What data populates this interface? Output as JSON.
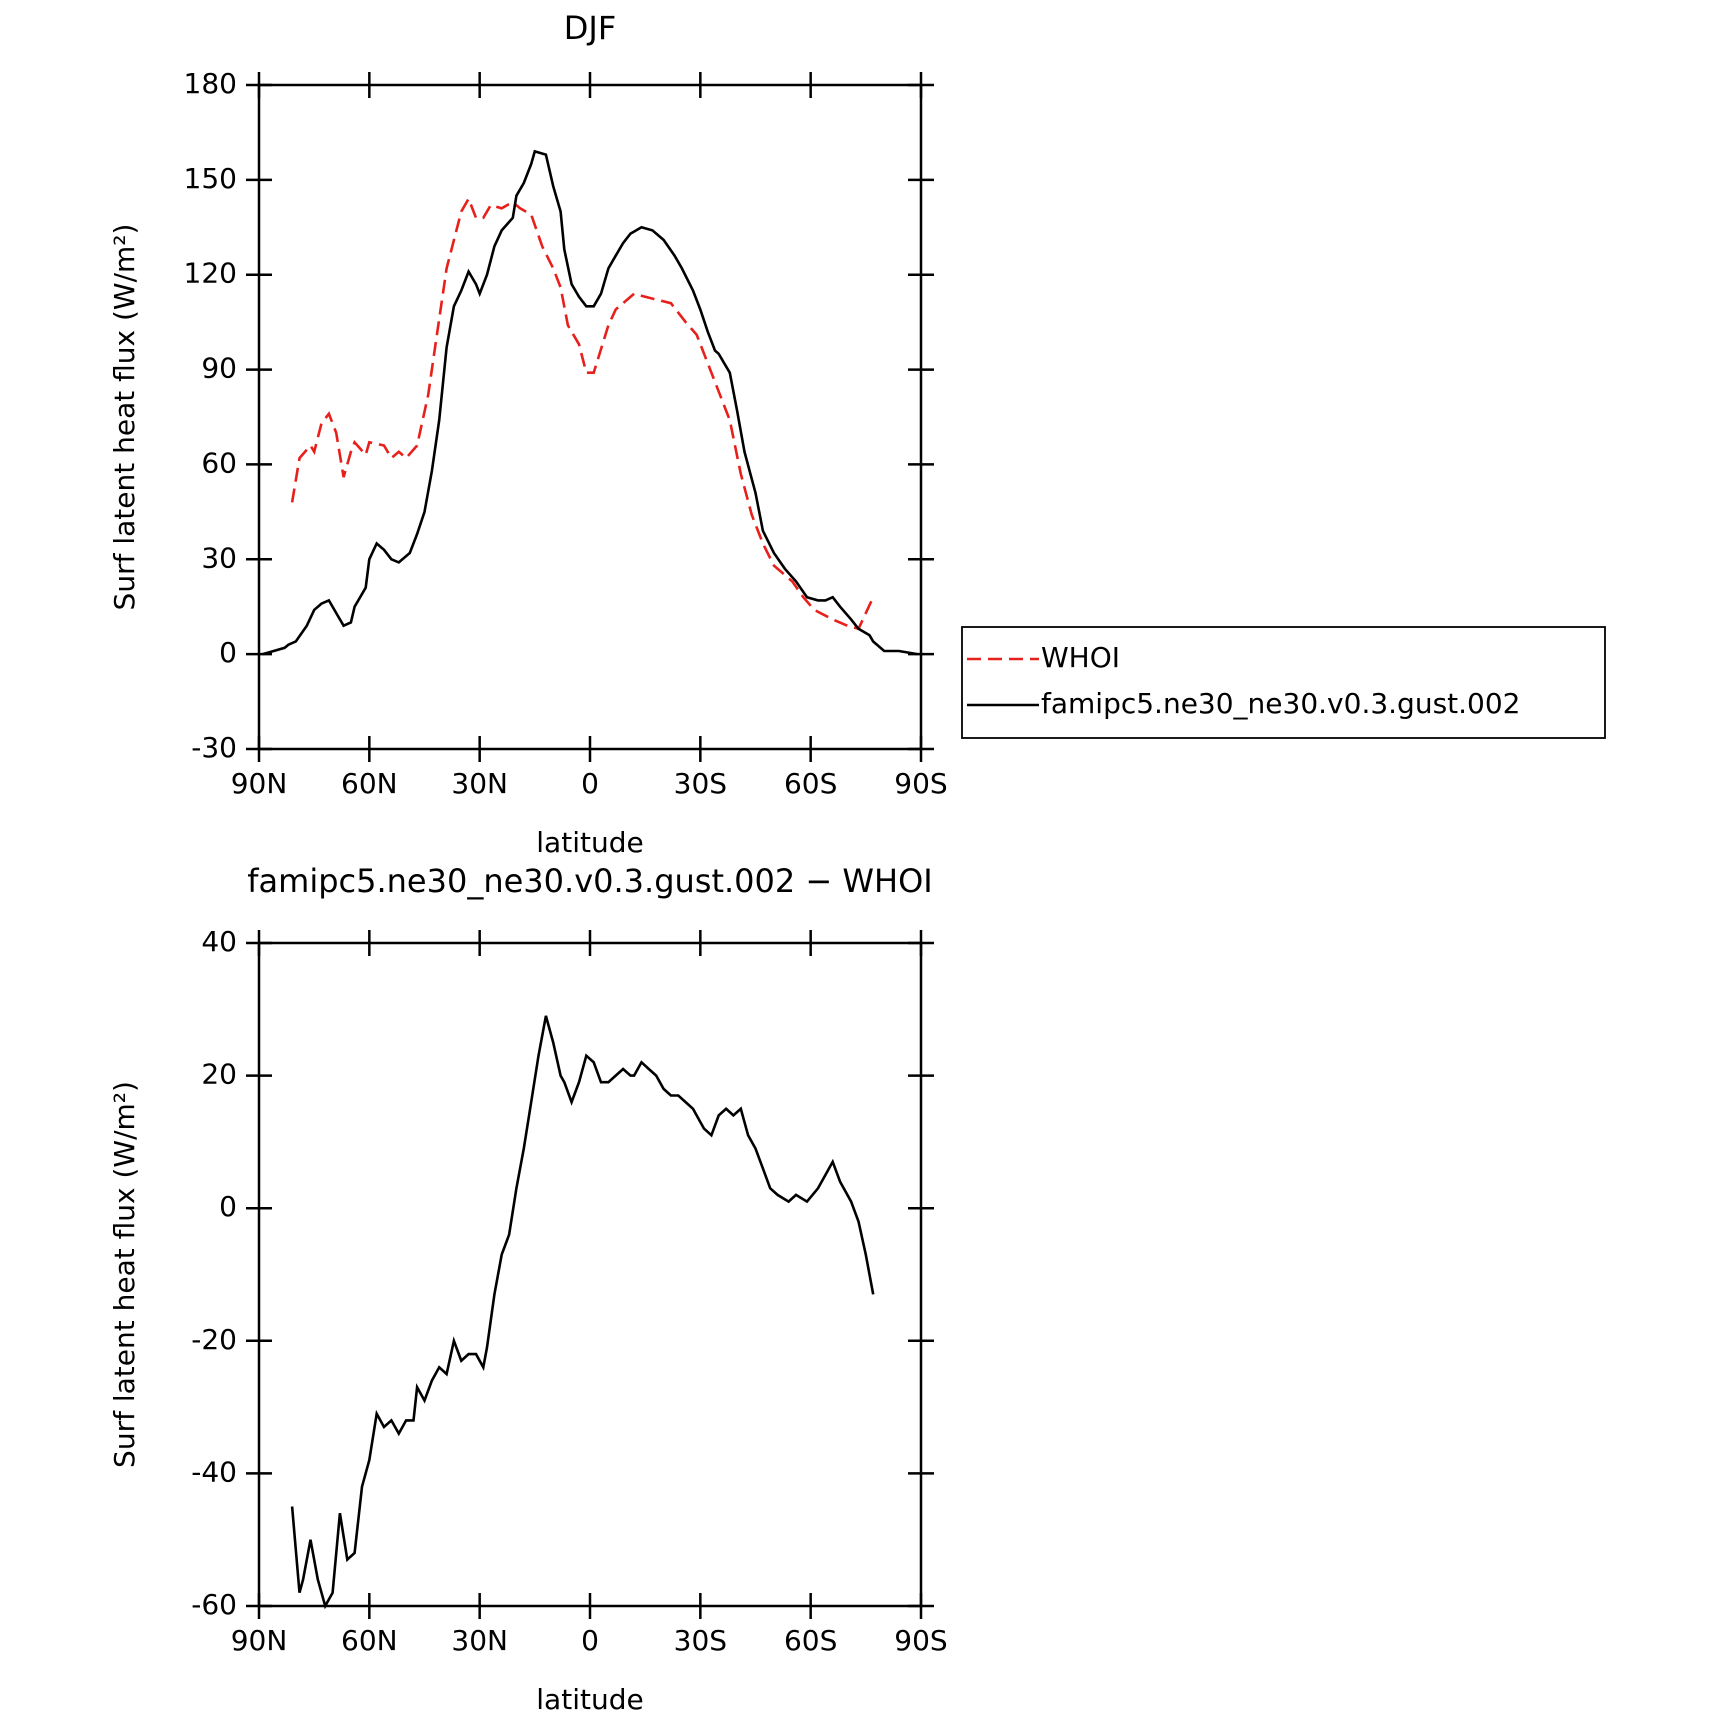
{
  "chart_data": [
    {
      "type": "line",
      "title": "DJF",
      "x_label": "latitude",
      "y_label": "Surf latent heat flux (W/m²)",
      "xlim": [
        90,
        -90
      ],
      "xticks": [
        {
          "value": 90,
          "label": "90N"
        },
        {
          "value": 60,
          "label": "60N"
        },
        {
          "value": 30,
          "label": "30N"
        },
        0,
        {
          "value": -30,
          "label": "30S"
        },
        {
          "value": -60,
          "label": "60S"
        },
        {
          "value": -90,
          "label": "90S"
        }
      ],
      "ylim": [
        -30,
        180
      ],
      "yticks": [
        -30,
        0,
        30,
        60,
        90,
        120,
        150,
        180
      ],
      "legend": "right",
      "series": [
        {
          "name": "WHOI",
          "color": "#e8201b",
          "line_style": "dashed",
          "x": [
            81,
            79,
            76,
            75,
            73,
            71,
            69,
            67,
            65,
            64,
            61,
            60,
            56,
            54,
            52,
            50,
            47,
            44,
            42,
            39,
            35,
            33,
            31,
            29,
            27,
            24,
            21,
            19,
            16,
            13,
            10,
            8,
            6,
            3,
            1,
            -1,
            -5,
            -7,
            -12,
            -15,
            -22,
            -26,
            -29,
            -33,
            -38,
            -41,
            -44,
            -47,
            -50,
            -55,
            -58,
            -61,
            -66,
            -70,
            -73,
            -77
          ],
          "values": [
            48,
            62,
            66,
            64,
            73,
            76,
            70,
            56,
            64,
            67,
            63,
            67,
            66,
            62,
            64,
            62,
            66,
            82,
            98,
            122,
            140,
            144,
            138,
            138,
            142,
            141,
            143,
            141,
            139,
            129,
            122,
            116,
            104,
            98,
            89,
            89,
            104,
            109,
            114,
            113,
            111,
            105,
            101,
            89,
            74,
            57,
            44,
            35,
            28,
            23,
            18,
            14,
            11,
            9,
            8,
            18
          ]
        },
        {
          "name": "famipc5.ne30_ne30.v0.3.gust.002",
          "color": "#000000",
          "line_style": "solid",
          "x": [
            89,
            86,
            83,
            82,
            80,
            77,
            75,
            73,
            71,
            69,
            67,
            65,
            64,
            61,
            60,
            58,
            56,
            54,
            52,
            49,
            47,
            45,
            43,
            41,
            39,
            37,
            35,
            33,
            31,
            30,
            28,
            26,
            24,
            21,
            20,
            18,
            16,
            15,
            12,
            10,
            8,
            7,
            5,
            3,
            1,
            -1,
            -3,
            -5,
            -7,
            -9,
            -11,
            -14,
            -17,
            -20,
            -23,
            -25,
            -28,
            -30,
            -32,
            -34,
            -35,
            -38,
            -40,
            -42,
            -45,
            -47,
            -50,
            -53,
            -56,
            -59,
            -62,
            -64,
            -66,
            -68,
            -71,
            -73,
            -76,
            -77,
            -80,
            -84,
            -89
          ],
          "values": [
            0,
            1,
            2,
            3,
            4,
            9,
            14,
            16,
            17,
            13,
            9,
            10,
            15,
            21,
            30,
            35,
            33,
            30,
            29,
            32,
            38,
            45,
            58,
            74,
            97,
            110,
            115,
            121,
            117,
            114,
            120,
            129,
            134,
            138,
            145,
            149,
            155,
            159,
            158,
            148,
            140,
            128,
            117,
            113,
            110,
            110,
            114,
            122,
            126,
            130,
            133,
            135,
            134,
            131,
            126,
            122,
            115,
            109,
            102,
            96,
            95,
            89,
            77,
            64,
            51,
            39,
            32,
            27,
            23,
            18,
            17,
            17,
            18,
            15,
            11,
            8,
            6,
            4,
            1,
            1,
            0
          ]
        }
      ]
    },
    {
      "type": "line",
      "title": "famipc5.ne30_ne30.v0.3.gust.002 − WHOI",
      "x_label": "latitude",
      "y_label": "Surf latent heat flux (W/m²)",
      "xlim": [
        90,
        -90
      ],
      "xticks": [
        {
          "value": 90,
          "label": "90N"
        },
        {
          "value": 60,
          "label": "60N"
        },
        {
          "value": 30,
          "label": "30N"
        },
        0,
        {
          "value": -30,
          "label": "30S"
        },
        {
          "value": -60,
          "label": "60S"
        },
        {
          "value": -90,
          "label": "90S"
        }
      ],
      "ylim": [
        -60,
        40
      ],
      "yticks": [
        -60,
        -40,
        -20,
        0,
        20,
        40
      ],
      "color": "#000000",
      "x": [
        81,
        79,
        78,
        76,
        74,
        72,
        70,
        68,
        66,
        64,
        62,
        60,
        58,
        56,
        54,
        52,
        50,
        48,
        47,
        45,
        43,
        41,
        39,
        37,
        35,
        33,
        31,
        29,
        28,
        26,
        24,
        22,
        20,
        18,
        16,
        14,
        12,
        10,
        8,
        7,
        5,
        3,
        1,
        -1,
        -3,
        -5,
        -7,
        -9,
        -11,
        -12,
        -14,
        -16,
        -18,
        -20,
        -22,
        -24,
        -26,
        -28,
        -30,
        -31,
        -33,
        -35,
        -37,
        -39,
        -41,
        -43,
        -45,
        -47,
        -49,
        -51,
        -54,
        -56,
        -59,
        -62,
        -64,
        -66,
        -68,
        -70,
        -71,
        -73,
        -75,
        -77
      ],
      "values": [
        -45,
        -58,
        -56,
        -50,
        -56,
        -60,
        -58,
        -46,
        -53,
        -52,
        -42,
        -38,
        -31,
        -33,
        -32,
        -34,
        -32,
        -32,
        -27,
        -29,
        -26,
        -24,
        -25,
        -20,
        -23,
        -22,
        -22,
        -24,
        -21,
        -13,
        -7,
        -4,
        3,
        9,
        16,
        23,
        29,
        25,
        20,
        19,
        16,
        19,
        23,
        22,
        19,
        19,
        20,
        21,
        20,
        20,
        22,
        21,
        20,
        18,
        17,
        17,
        16,
        15,
        13,
        12,
        11,
        14,
        15,
        14,
        15,
        11,
        9,
        6,
        3,
        2,
        1,
        2,
        1,
        3,
        5,
        7,
        4,
        2,
        1,
        -2,
        -7,
        -13
      ]
    }
  ]
}
